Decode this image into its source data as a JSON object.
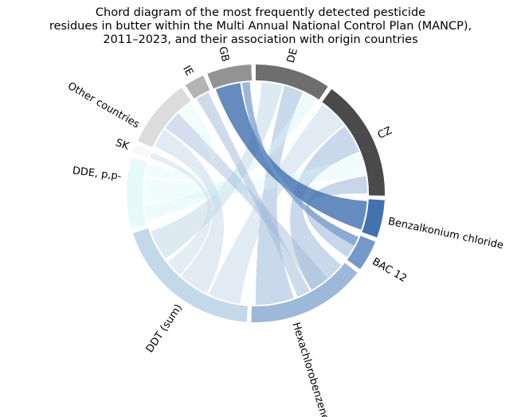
{
  "title_lines": [
    "Chord diagram of the most frequently detected pesticide",
    "residues in butter within the Multi Annual National Control Plan (MANCP),",
    "2011–2023, and their association with origin countries"
  ],
  "chart_data": {
    "type": "chord",
    "groups": [
      {
        "name": "CZ",
        "kind": "country",
        "color": "#4a4a4a"
      },
      {
        "name": "Benzalkonium chloride",
        "kind": "pesticide",
        "color": "#4472b0"
      },
      {
        "name": "BAC 12",
        "kind": "pesticide",
        "color": "#7499c8"
      },
      {
        "name": "Hexachlorobenzene",
        "kind": "pesticide",
        "color": "#9db8d8"
      },
      {
        "name": "DDT (sum)",
        "kind": "pesticide",
        "color": "#c3d8e8"
      },
      {
        "name": "DDE, p,p-",
        "kind": "pesticide",
        "color": "#e6fafa"
      },
      {
        "name": "SK",
        "kind": "country",
        "color": "#f8f8f8"
      },
      {
        "name": "Other countries",
        "kind": "country",
        "color": "#dcdcdc"
      },
      {
        "name": "IE",
        "kind": "country",
        "color": "#b4b4b4"
      },
      {
        "name": "GB",
        "kind": "country",
        "color": "#939393"
      },
      {
        "name": "DE",
        "kind": "country",
        "color": "#6e6e6e"
      }
    ]
  }
}
